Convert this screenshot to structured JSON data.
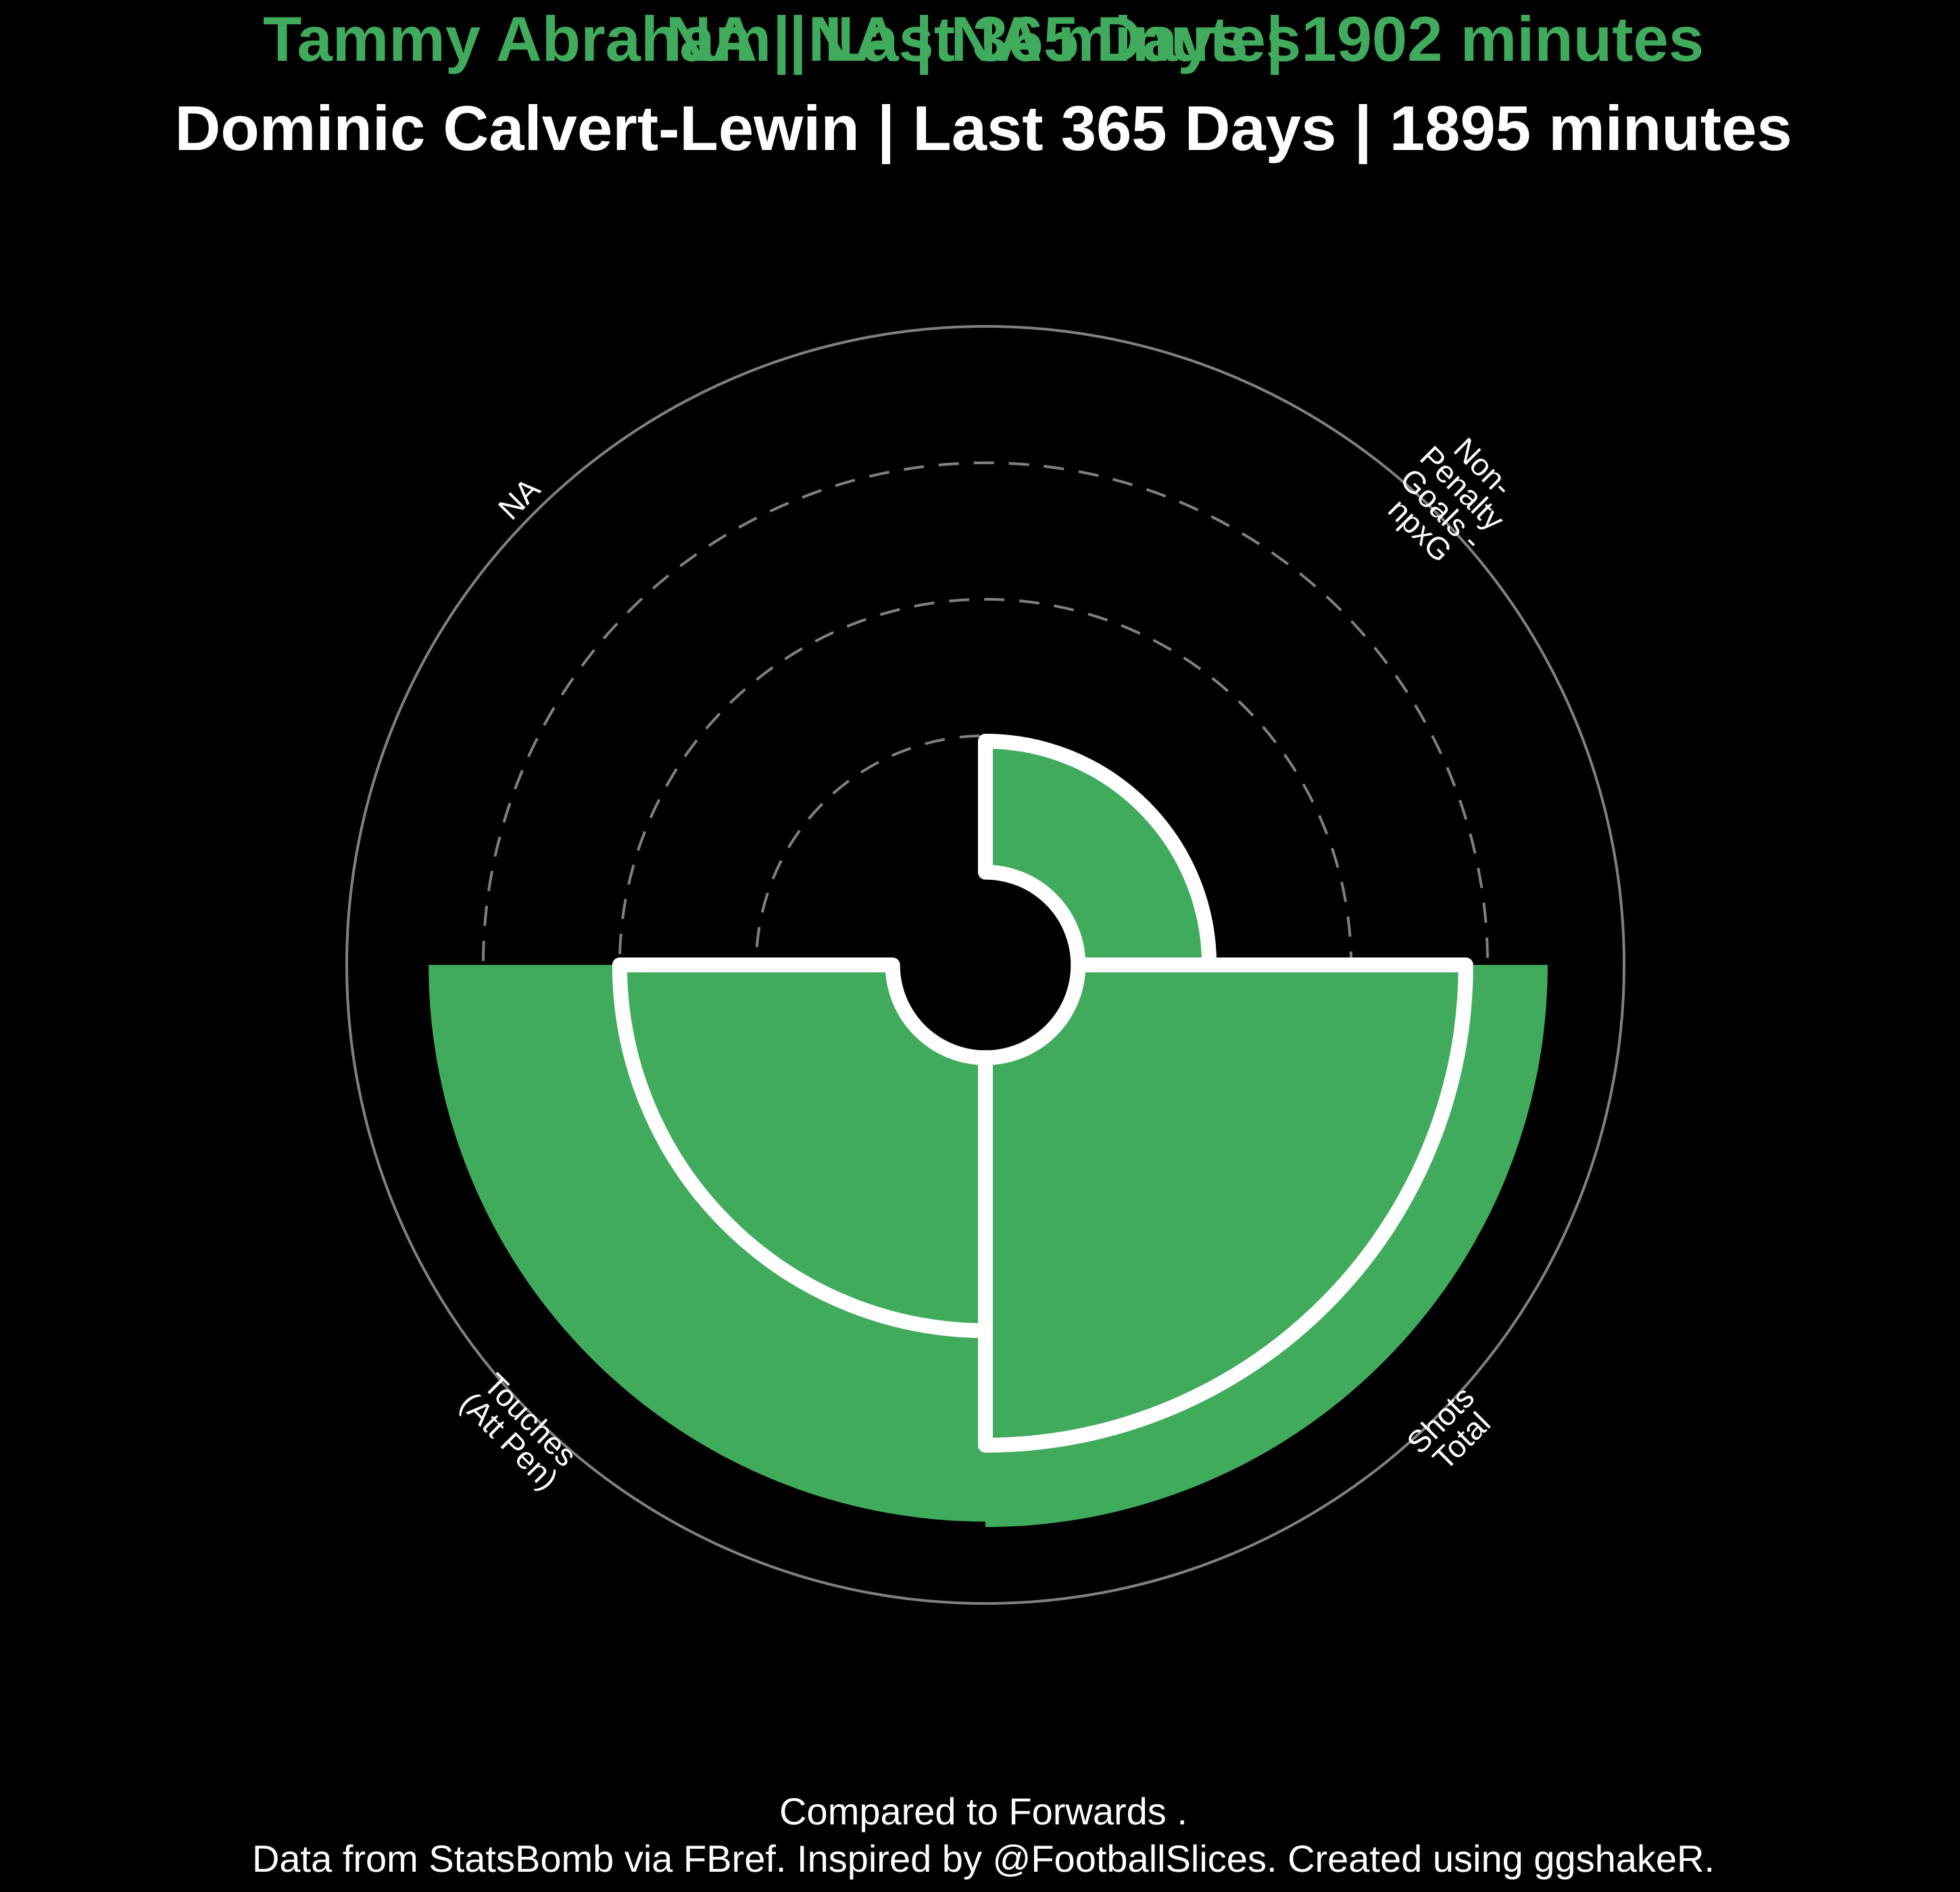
{
  "titles": {
    "title_a": "Tammy Abraham | Last 365 Days | 1902 minutes",
    "title_overlap": "NA | NA | NA minutes",
    "title_b": "Dominic Calvert-Lewin | Last 365 Days | 1895 minutes"
  },
  "captions": {
    "line1": "Compared to Forwards .",
    "line2": "Data from StatsBomb via FBref. Inspired by @FootballSlices. Created using ggshakeR."
  },
  "colors": {
    "background": "#000000",
    "player_a": "#41AB5D",
    "player_b": "#FFFFFF",
    "grid": "#808080"
  },
  "chart_data": {
    "type": "polar-bar",
    "categories": [
      "Non-Penalty Goals - npxG",
      "Shots Total",
      "Touches (Att Pen)",
      "NA"
    ],
    "category_labels": [
      [
        "Non-",
        "Penalty",
        "Goals -",
        "npxG"
      ],
      [
        "Shots",
        "Total"
      ],
      [
        "Touches",
        "(Att Pen)"
      ],
      [
        "NA"
      ]
    ],
    "series": [
      {
        "name": "Tammy Abraham",
        "role": "filled bars",
        "values": [
          23,
          86,
          85,
          null
        ]
      },
      {
        "name": "Dominic Calvert-Lewin",
        "role": "outline bars",
        "values": [
          24,
          71,
          50,
          null
        ]
      }
    ],
    "inner_hole_percentile": 17,
    "rlim": [
      0,
      117
    ],
    "grid_percentiles": [
      25,
      50,
      75
    ],
    "outer_circle_percentile": 100
  }
}
